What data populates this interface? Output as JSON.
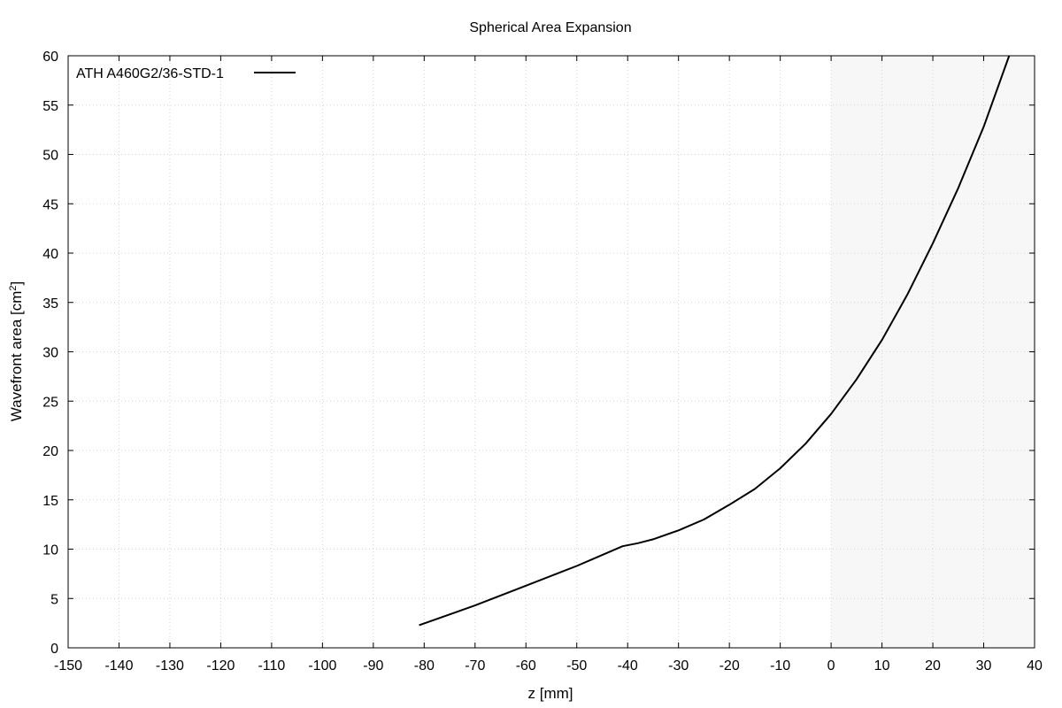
{
  "chart_data": {
    "type": "line",
    "title": "Spherical Area Expansion",
    "xlabel": "z [mm]",
    "ylabel": "Wavefront area [cm",
    "ylabel_sup": "2",
    "ylabel_end": "]",
    "xlim": [
      -150,
      40
    ],
    "ylim": [
      0,
      60
    ],
    "x_ticks": [
      -150,
      -140,
      -130,
      -120,
      -110,
      -100,
      -90,
      -80,
      -70,
      -60,
      -50,
      -40,
      -30,
      -20,
      -10,
      0,
      10,
      20,
      30,
      40
    ],
    "y_ticks": [
      0,
      5,
      10,
      15,
      20,
      25,
      30,
      35,
      40,
      45,
      50,
      55,
      60
    ],
    "grid": true,
    "legend_position": "top-left",
    "shaded_region": {
      "x_start": 0,
      "x_end": 40,
      "color": "#f7f7f7"
    },
    "series": [
      {
        "name": "ATH A460G2/36-STD-1",
        "color": "#000000",
        "x": [
          -81,
          -70,
          -60,
          -50,
          -41,
          -38,
          -35,
          -30,
          -25,
          -20,
          -15,
          -10,
          -5,
          0,
          5,
          10,
          15,
          20,
          25,
          30,
          35
        ],
        "y": [
          2.3,
          4.3,
          6.3,
          8.3,
          10.3,
          10.6,
          11.0,
          11.9,
          13.0,
          14.5,
          16.1,
          18.2,
          20.7,
          23.7,
          27.2,
          31.2,
          35.8,
          41.0,
          46.6,
          52.8,
          60.0
        ]
      }
    ]
  }
}
